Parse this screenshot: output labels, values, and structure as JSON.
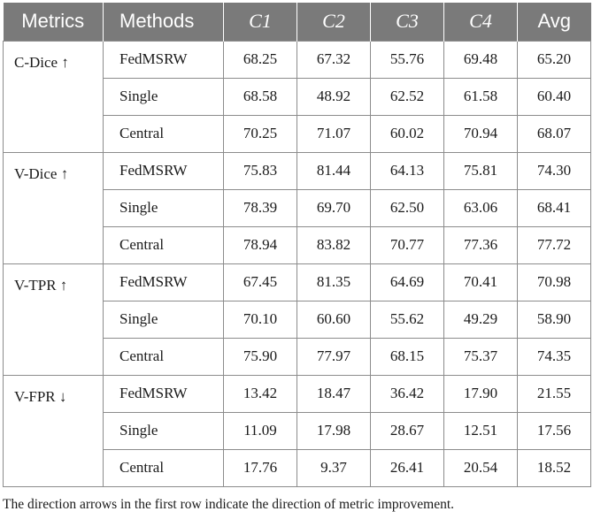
{
  "table": {
    "headers": {
      "metrics": "Metrics",
      "methods": "Methods",
      "clients": [
        "C1",
        "C2",
        "C3",
        "C4"
      ],
      "avg": "Avg"
    },
    "groups": [
      {
        "metric": "C-Dice ↑",
        "rows": [
          {
            "method": "FedMSRW",
            "values": [
              "68.25",
              "67.32",
              "55.76",
              "69.48",
              "65.20"
            ]
          },
          {
            "method": "Single",
            "values": [
              "68.58",
              "48.92",
              "62.52",
              "61.58",
              "60.40"
            ]
          },
          {
            "method": "Central",
            "values": [
              "70.25",
              "71.07",
              "60.02",
              "70.94",
              "68.07"
            ]
          }
        ]
      },
      {
        "metric": "V-Dice ↑",
        "rows": [
          {
            "method": "FedMSRW",
            "values": [
              "75.83",
              "81.44",
              "64.13",
              "75.81",
              "74.30"
            ]
          },
          {
            "method": "Single",
            "values": [
              "78.39",
              "69.70",
              "62.50",
              "63.06",
              "68.41"
            ]
          },
          {
            "method": "Central",
            "values": [
              "78.94",
              "83.82",
              "70.77",
              "77.36",
              "77.72"
            ]
          }
        ]
      },
      {
        "metric": "V-TPR ↑",
        "rows": [
          {
            "method": "FedMSRW",
            "values": [
              "67.45",
              "81.35",
              "64.69",
              "70.41",
              "70.98"
            ]
          },
          {
            "method": "Single",
            "values": [
              "70.10",
              "60.60",
              "55.62",
              "49.29",
              "58.90"
            ]
          },
          {
            "method": "Central",
            "values": [
              "75.90",
              "77.97",
              "68.15",
              "75.37",
              "74.35"
            ]
          }
        ]
      },
      {
        "metric": "V-FPR ↓",
        "rows": [
          {
            "method": "FedMSRW",
            "values": [
              "13.42",
              "18.47",
              "36.42",
              "17.90",
              "21.55"
            ]
          },
          {
            "method": "Single",
            "values": [
              "11.09",
              "17.98",
              "28.67",
              "12.51",
              "17.56"
            ]
          },
          {
            "method": "Central",
            "values": [
              "17.76",
              "9.37",
              "26.41",
              "20.54",
              "18.52"
            ]
          }
        ]
      }
    ]
  },
  "footnote": "The direction arrows in the first row indicate the direction of metric improvement."
}
